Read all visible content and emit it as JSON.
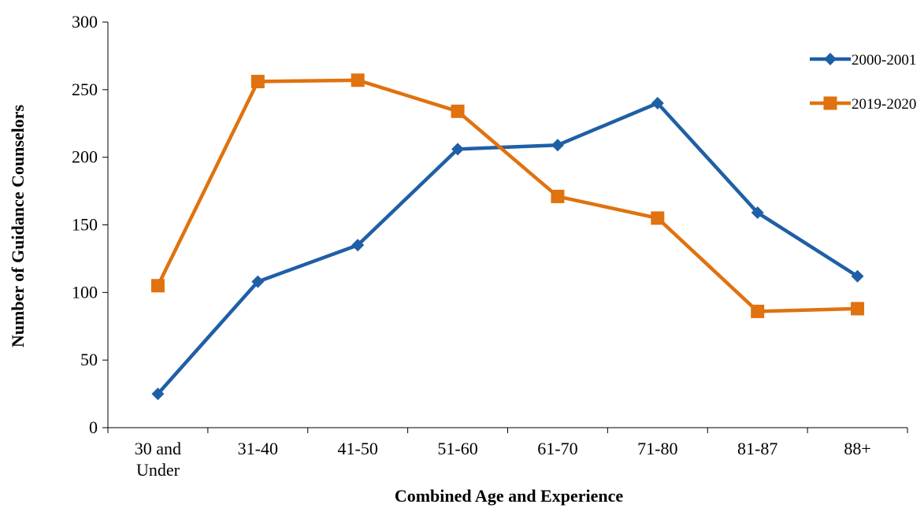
{
  "chart_data": {
    "type": "line",
    "title": "",
    "xlabel": "Combined Age and Experience",
    "ylabel": "Number of Guidance Counselors",
    "categories": [
      [
        "30 and",
        "Under"
      ],
      [
        "31-40"
      ],
      [
        "41-50"
      ],
      [
        "51-60"
      ],
      [
        "61-70"
      ],
      [
        "71-80"
      ],
      [
        "81-87"
      ],
      [
        "88+"
      ]
    ],
    "yticks": [
      "0",
      "50",
      "100",
      "150",
      "200",
      "250",
      "300"
    ],
    "ylim": [
      0,
      300
    ],
    "grid": false,
    "legend_position": "top-right",
    "series": [
      {
        "name": "2000-2001",
        "color": "#1f5fa6",
        "marker": "diamond",
        "values": [
          25,
          108,
          135,
          206,
          209,
          240,
          159,
          112
        ]
      },
      {
        "name": "2019-2020",
        "color": "#e0720f",
        "marker": "square",
        "values": [
          105,
          256,
          257,
          234,
          171,
          155,
          86,
          88
        ]
      }
    ]
  }
}
